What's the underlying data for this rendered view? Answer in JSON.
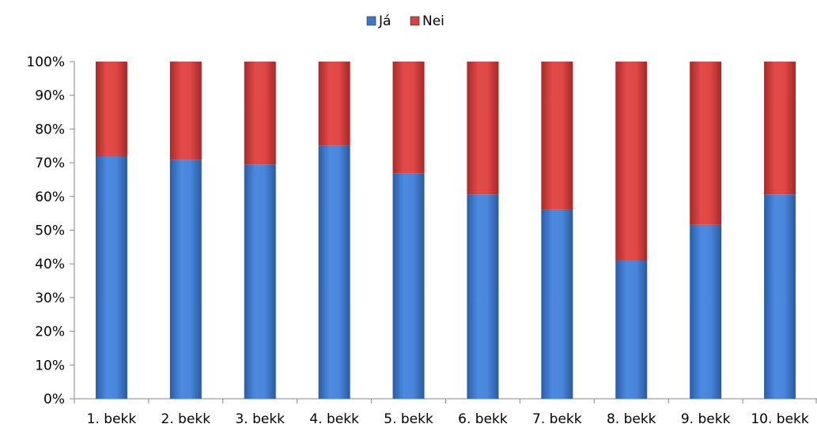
{
  "chart_data": {
    "type": "bar",
    "stacked": true,
    "percent": true,
    "categories": [
      "1. bekk",
      "2. bekk",
      "3. bekk",
      "4. bekk",
      "5. bekk",
      "6. bekk",
      "7. bekk",
      "8. bekk",
      "9. bekk",
      "10. bekk"
    ],
    "series": [
      {
        "name": "Já",
        "color": "#3d77cc",
        "values": [
          71.9,
          70.9,
          69.5,
          75.1,
          66.9,
          60.6,
          56.0,
          41.1,
          51.6,
          60.6
        ]
      },
      {
        "name": "Nei",
        "color": "#d8403f",
        "values": [
          28.1,
          29.1,
          30.5,
          24.9,
          33.1,
          39.4,
          44.0,
          58.9,
          48.4,
          39.4
        ]
      }
    ],
    "ylim": [
      0,
      100
    ],
    "ytick_labels": [
      "0%",
      "10%",
      "20%",
      "30%",
      "40%",
      "50%",
      "60%",
      "70%",
      "80%",
      "90%",
      "100%"
    ],
    "legend_position": "top-center",
    "grid": false
  }
}
